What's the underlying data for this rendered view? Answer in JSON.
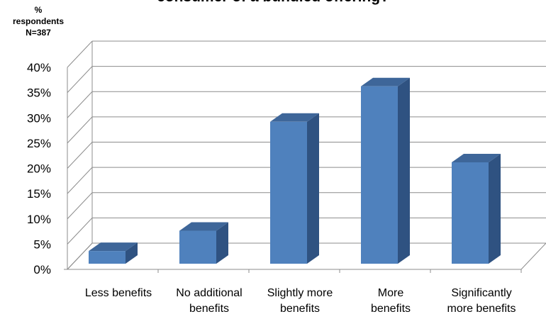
{
  "chart_data": {
    "type": "bar",
    "title": "consumer of a bundled offering?",
    "ylabel": [
      "%",
      "respondents",
      "N=387"
    ],
    "categories": [
      [
        "Less benefits"
      ],
      [
        "No additional",
        "benefits"
      ],
      [
        "Slightly more",
        "benefits"
      ],
      [
        "More",
        "benefits"
      ],
      [
        "Significantly",
        "more benefits"
      ]
    ],
    "values": [
      2.5,
      6.5,
      28,
      35,
      20
    ],
    "yticks": [
      "0%",
      "5%",
      "10%",
      "15%",
      "20%",
      "25%",
      "30%",
      "35%",
      "40%"
    ],
    "ylim": [
      0,
      40
    ],
    "grid": true,
    "colors": {
      "bar_front": "#4F81BD",
      "bar_side": "#2F5281",
      "bar_top": "#3E6699",
      "grid": "#8C8C8C"
    }
  }
}
